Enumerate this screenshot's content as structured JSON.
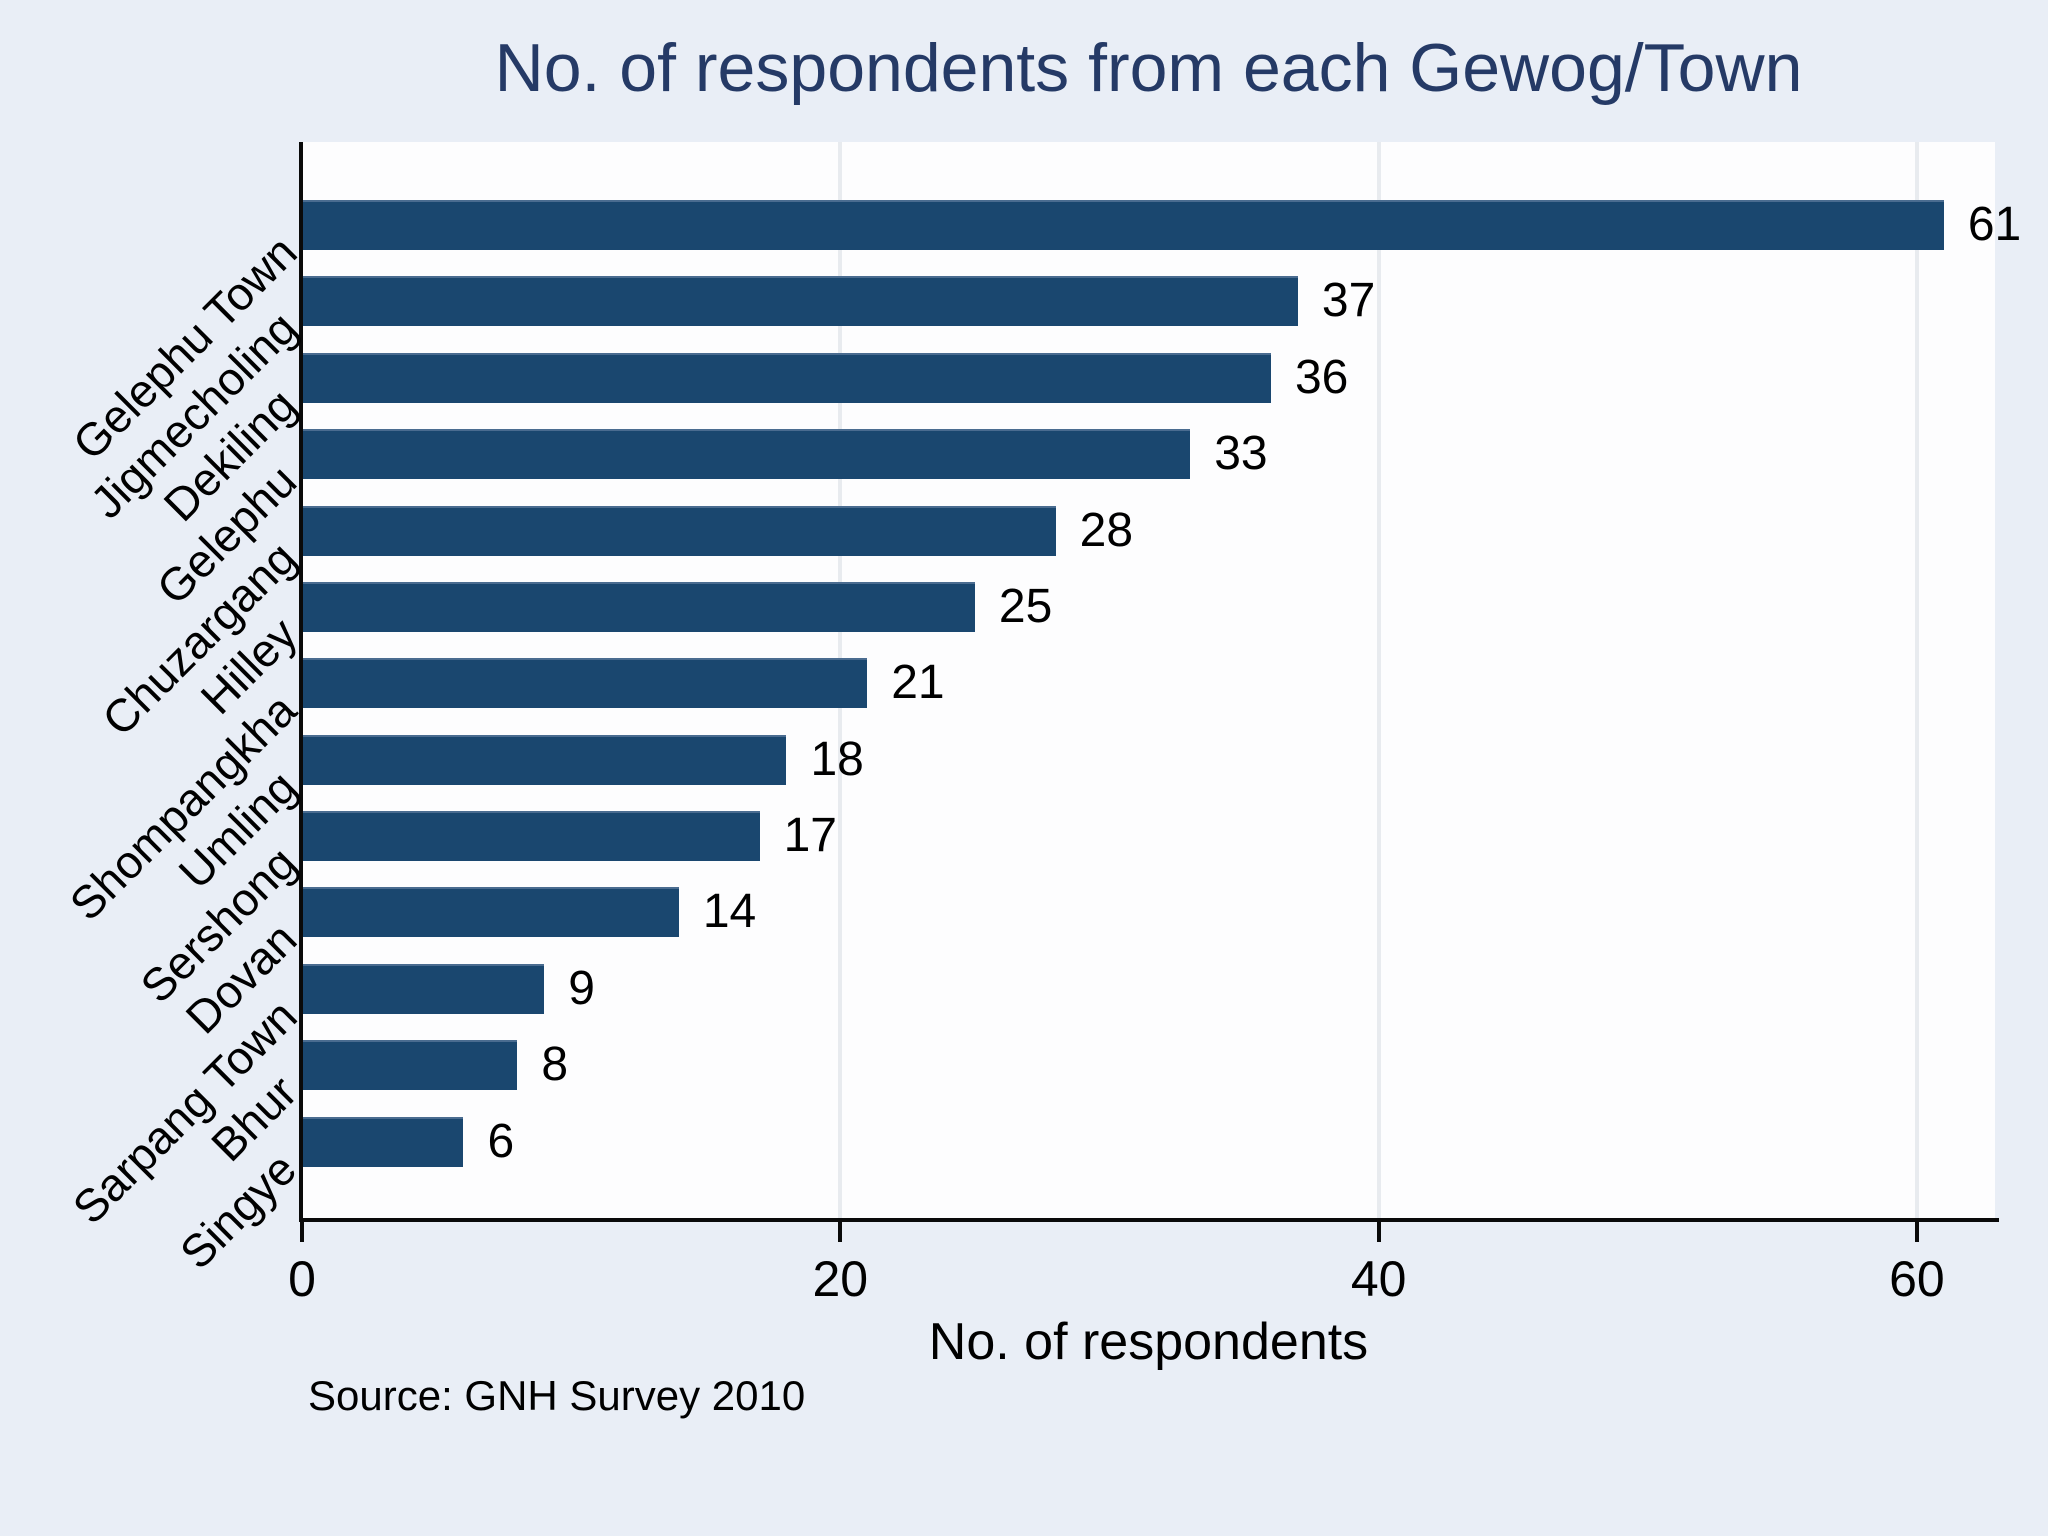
{
  "title": "No. of respondents from each Gewog/Town",
  "source_note": "Source: GNH Survey 2010",
  "chart_data": {
    "type": "bar",
    "orientation": "horizontal",
    "title": "No. of respondents from each Gewog/Town",
    "categories": [
      "Gelephu Town",
      "Jigmecholing",
      "Dekiling",
      "Gelephu",
      "Chuzargang",
      "Hilley",
      "Shompangkha",
      "Umling",
      "Sershong",
      "Dovan",
      "Sarpang Town",
      "Bhur",
      "Singye"
    ],
    "values": [
      61,
      37,
      36,
      33,
      28,
      25,
      21,
      18,
      17,
      14,
      9,
      8,
      6
    ],
    "bar_labels": [
      "61",
      "37",
      "36",
      "33",
      "28",
      "25",
      "21",
      "18",
      "17",
      "14",
      "9",
      "8",
      "6"
    ],
    "xlabel": "No. of respondents",
    "ylabel": "",
    "x_ticks": [
      0,
      20,
      40,
      60
    ],
    "x_tick_labels": [
      "0",
      "20",
      "40",
      "60"
    ],
    "xlim": [
      0,
      62.9
    ],
    "grid": "vertical gridlines at x ticks",
    "legend": "none",
    "annotation": "Source: GNH Survey 2010",
    "colors": {
      "bar": "#1a476f",
      "title_text": "#253a66",
      "page_background": "#e9eef6",
      "plot_background": "#fdfdfe",
      "gridline": "#e8ebef",
      "axis": "#0a0a0a",
      "label_text": "#000000"
    }
  }
}
